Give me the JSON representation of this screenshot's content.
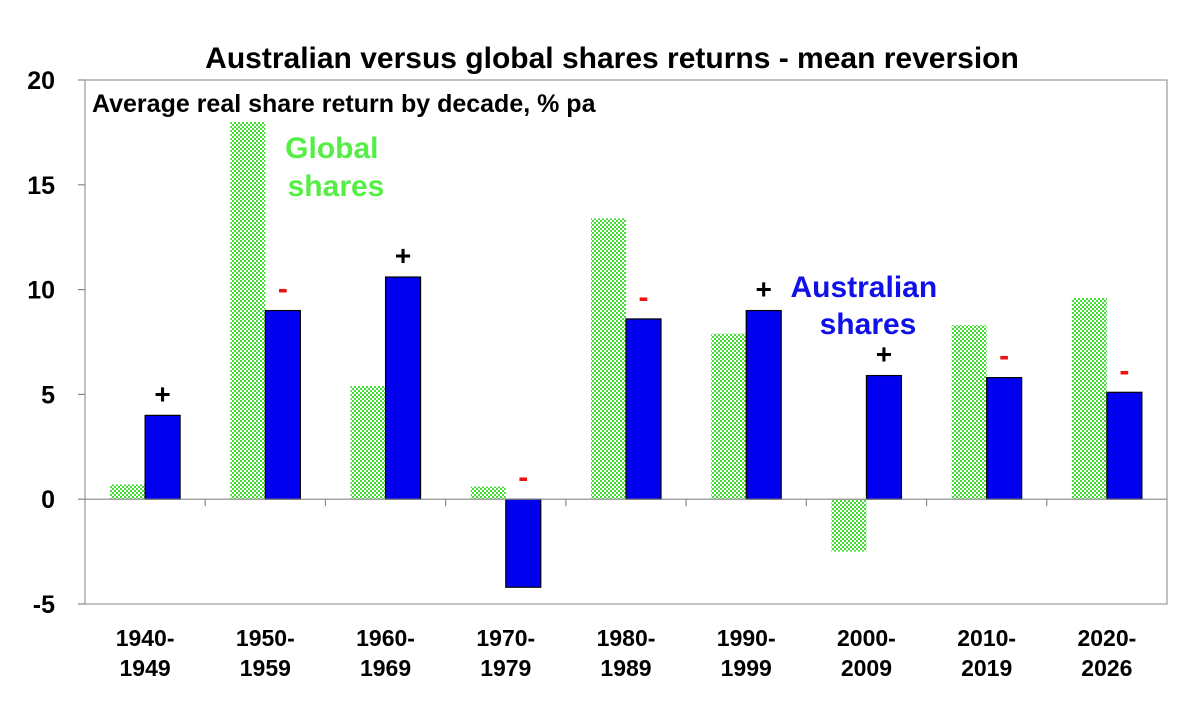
{
  "chart_data": {
    "type": "bar",
    "title": "Australian versus global shares returns - mean reversion",
    "subtitle": "Average real share return by decade,  % pa",
    "categories": [
      [
        "1940-",
        "1949"
      ],
      [
        "1950-",
        "1959"
      ],
      [
        "1960-",
        "1969"
      ],
      [
        "1970-",
        "1979"
      ],
      [
        "1980-",
        "1989"
      ],
      [
        "1990-",
        "1999"
      ],
      [
        "2000-",
        "2009"
      ],
      [
        "2010-",
        "2019"
      ],
      [
        "2020-",
        "2026"
      ]
    ],
    "series": [
      {
        "name": "Global shares",
        "label_lines": [
          "Global",
          "shares"
        ],
        "color": "#44dd33",
        "pattern": "checkered",
        "values": [
          0.7,
          18.0,
          5.4,
          0.6,
          13.4,
          7.9,
          -2.5,
          8.3,
          9.6
        ]
      },
      {
        "name": "Australian shares",
        "label_lines": [
          "Australian",
          "shares"
        ],
        "color": "#0000ee",
        "pattern": "solid",
        "values": [
          4.0,
          9.0,
          10.6,
          -4.2,
          8.6,
          9.0,
          5.9,
          5.8,
          5.1
        ]
      }
    ],
    "annotations": [
      "+",
      "-",
      "+",
      "-",
      "-",
      "+",
      "+",
      "-",
      "-"
    ],
    "annotation_colors": {
      "+": "#000000",
      "-": "#ee1111"
    },
    "yticks": [
      "20",
      "15",
      "10",
      "5",
      "0",
      "-5"
    ],
    "ylim": [
      -5,
      20
    ],
    "grid": false,
    "legend": "inline labels"
  }
}
